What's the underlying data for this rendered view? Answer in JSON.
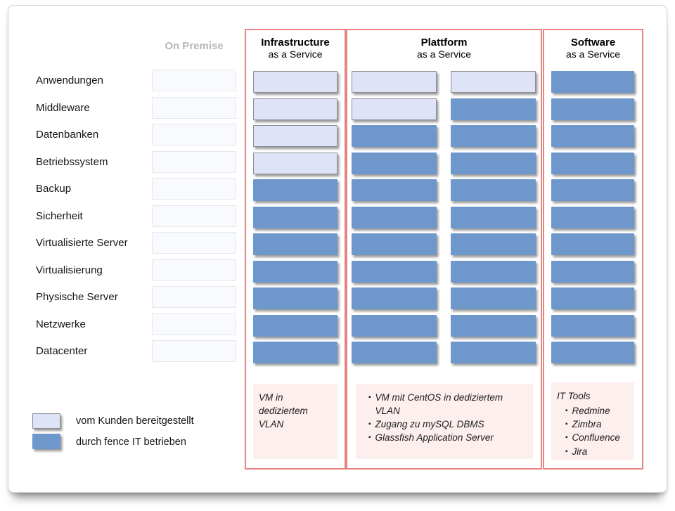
{
  "page": {
    "on_premise_header": "On Premise"
  },
  "rows": [
    "Anwendungen",
    "Middleware",
    "Datenbanken",
    "Betriebssystem",
    "Backup",
    "Sicherheit",
    "Virtualisierte Server",
    "Virtualisierung",
    "Physische Server",
    "Netzwerke",
    "Datacenter"
  ],
  "groups": [
    {
      "id": "iaas",
      "title": "Infrastructure",
      "subtitle": "as a Service",
      "columns": [
        {
          "cells": [
            "customer",
            "customer",
            "customer",
            "customer",
            "fence",
            "fence",
            "fence",
            "fence",
            "fence",
            "fence",
            "fence"
          ]
        }
      ],
      "note": {
        "text": "VM in dediziertem VLAN"
      }
    },
    {
      "id": "paas",
      "title": "Plattform",
      "subtitle": "as a Service",
      "columns": [
        {
          "cells": [
            "customer",
            "customer",
            "fence",
            "fence",
            "fence",
            "fence",
            "fence",
            "fence",
            "fence",
            "fence",
            "fence"
          ]
        },
        {
          "cells": [
            "customer",
            "fence",
            "fence",
            "fence",
            "fence",
            "fence",
            "fence",
            "fence",
            "fence",
            "fence",
            "fence"
          ]
        }
      ],
      "note": {
        "items": [
          "VM mit CentOS in dediziertem VLAN",
          "Zugang zu mySQL DBMS",
          "Glassfish Application Server"
        ]
      }
    },
    {
      "id": "saas",
      "title": "Software",
      "subtitle": "as a Service",
      "columns": [
        {
          "cells": [
            "fence",
            "fence",
            "fence",
            "fence",
            "fence",
            "fence",
            "fence",
            "fence",
            "fence",
            "fence",
            "fence"
          ]
        }
      ],
      "note": {
        "title": "IT Tools",
        "items": [
          "Redmine",
          "Zimbra",
          "Confluence",
          "Jira"
        ]
      }
    }
  ],
  "legend": {
    "items": [
      {
        "type": "customer",
        "label": "vom Kunden bereitgestellt"
      },
      {
        "type": "fence",
        "label": "durch fence IT betrieben"
      }
    ]
  },
  "colors": {
    "customer_fill": "#dfe3f7",
    "fence_fill": "#6e97cc",
    "cell_border": "#8b8d92",
    "group_border": "#e68484",
    "note_bg": "#fcefed",
    "on_premise_text": "#b4b6bb"
  }
}
